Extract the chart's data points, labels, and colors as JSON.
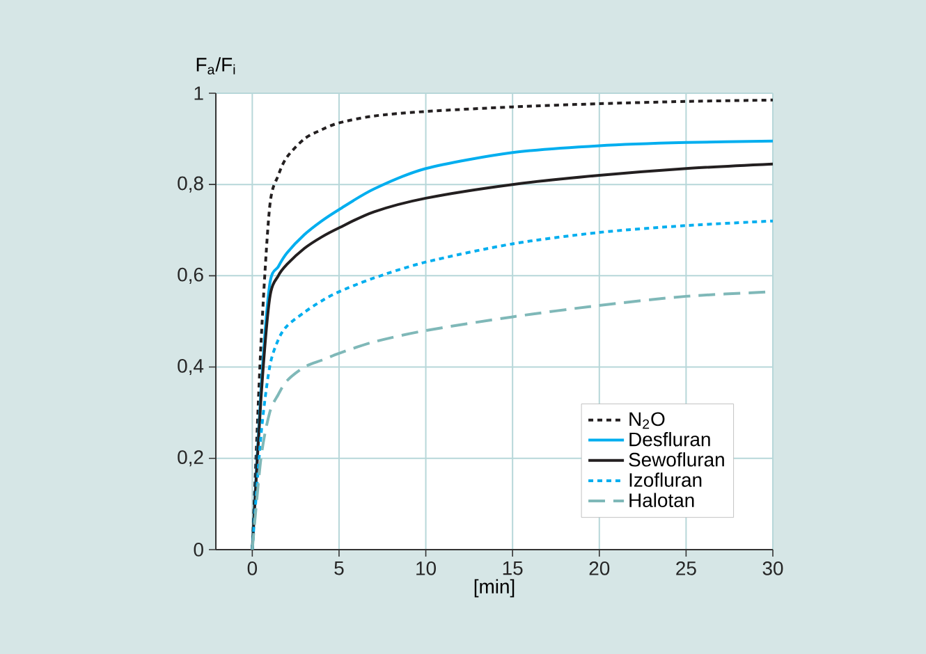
{
  "chart_data": {
    "type": "line",
    "xlabel": "[min]",
    "ylabel": "F$_{a}$/F$_{i}$",
    "x": [
      0,
      0.5,
      1,
      1.5,
      2,
      3,
      4,
      5,
      7,
      10,
      15,
      20,
      25,
      30
    ],
    "series": [
      {
        "name": "N$_{2}$O",
        "color": "#231f20",
        "line_style": "dotted",
        "values": [
          0,
          0.45,
          0.75,
          0.82,
          0.86,
          0.9,
          0.92,
          0.935,
          0.95,
          0.96,
          0.97,
          0.977,
          0.982,
          0.985
        ]
      },
      {
        "name": "Desfluran",
        "color": "#00aeef",
        "line_style": "solid",
        "values": [
          0,
          0.35,
          0.58,
          0.62,
          0.65,
          0.69,
          0.72,
          0.745,
          0.79,
          0.835,
          0.87,
          0.885,
          0.892,
          0.895
        ]
      },
      {
        "name": "Sewofluran",
        "color": "#231f20",
        "line_style": "solid",
        "values": [
          0,
          0.33,
          0.55,
          0.6,
          0.625,
          0.66,
          0.685,
          0.705,
          0.74,
          0.77,
          0.8,
          0.82,
          0.835,
          0.845
        ]
      },
      {
        "name": "Izofluran",
        "color": "#00aeef",
        "line_style": "dotted",
        "values": [
          0,
          0.25,
          0.4,
          0.46,
          0.49,
          0.52,
          0.545,
          0.565,
          0.595,
          0.63,
          0.67,
          0.695,
          0.71,
          0.72
        ]
      },
      {
        "name": "Halotan",
        "color": "#7fb8b8",
        "line_style": "dashed",
        "values": [
          0,
          0.2,
          0.3,
          0.34,
          0.37,
          0.4,
          0.415,
          0.43,
          0.455,
          0.48,
          0.51,
          0.535,
          0.555,
          0.565
        ]
      }
    ],
    "xlim": [
      -2.1,
      30
    ],
    "xticks": [
      0,
      5,
      10,
      15,
      20,
      25,
      30
    ],
    "ylim": [
      0,
      1
    ],
    "yticks": [
      0,
      {
        "value": 0.2,
        "label": "0,2"
      },
      {
        "value": 0.4,
        "label": "0,4"
      },
      {
        "value": 0.6,
        "label": "0,6"
      },
      {
        "value": 0.8,
        "label": "0,8"
      },
      1
    ],
    "grid": true,
    "legend": "bottom right",
    "marker": "none"
  }
}
